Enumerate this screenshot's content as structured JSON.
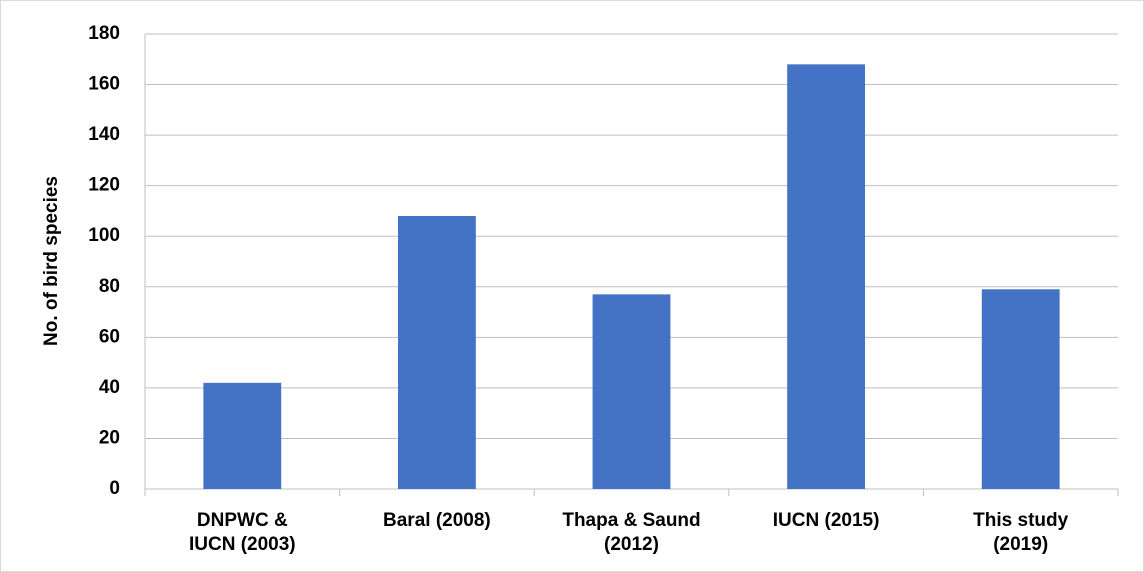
{
  "chart_data": {
    "type": "bar",
    "y_label": "No. of bird species",
    "categories": [
      "DNPWC &\nIUCN (2003)",
      "Baral (2008)",
      "Thapa & Saund\n(2012)",
      "IUCN (2015)",
      "This study\n(2019)"
    ],
    "values": [
      42,
      108,
      77,
      168,
      79
    ],
    "color": "#4472c4",
    "ylim": [
      0,
      180
    ],
    "yticks": [
      0,
      20,
      40,
      60,
      80,
      100,
      120,
      140,
      160,
      180
    ],
    "grid": true
  }
}
